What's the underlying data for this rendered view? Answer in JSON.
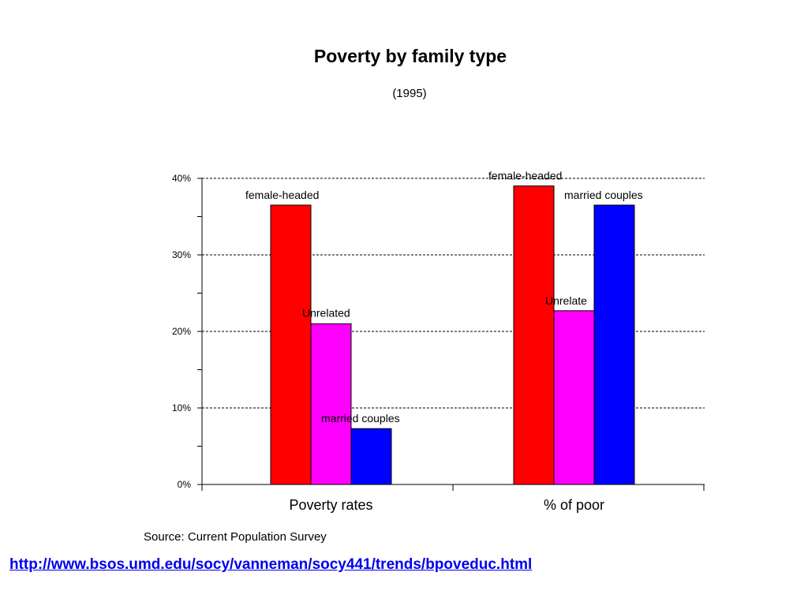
{
  "title": "Poverty by family type",
  "subtitle": "(1995)",
  "source": "Source: Current Population Survey",
  "link": "http://www.bsos.umd.edu/socy/vanneman/socy441/trends/bpoveduc.html",
  "colors": {
    "female_headed": "#ff0000",
    "unrelated": "#ff00ff",
    "married_couples": "#0000ff",
    "link": "#0000ee"
  },
  "chart_data": {
    "type": "bar",
    "title": "Poverty by family type",
    "subtitle": "(1995)",
    "categories": [
      "Poverty rates",
      "% of poor"
    ],
    "series": [
      {
        "name": "female-headed",
        "values": [
          36.5,
          39
        ],
        "labels": [
          "female-headed",
          "female-headed"
        ],
        "color": "#ff0000"
      },
      {
        "name": "Unrelated",
        "values": [
          21,
          22.7
        ],
        "labels": [
          "Unrelated",
          "Unrelate"
        ],
        "color": "#ff00ff"
      },
      {
        "name": "married couples",
        "values": [
          7.3,
          36.5
        ],
        "labels": [
          "married couples",
          "married couples"
        ],
        "color": "#0000ff"
      }
    ],
    "ylim": [
      0,
      40
    ],
    "yticks": [
      "0%",
      "10%",
      "20%",
      "30%",
      "40%"
    ],
    "grid": true,
    "legend": "none",
    "xlabel": "",
    "ylabel": ""
  }
}
